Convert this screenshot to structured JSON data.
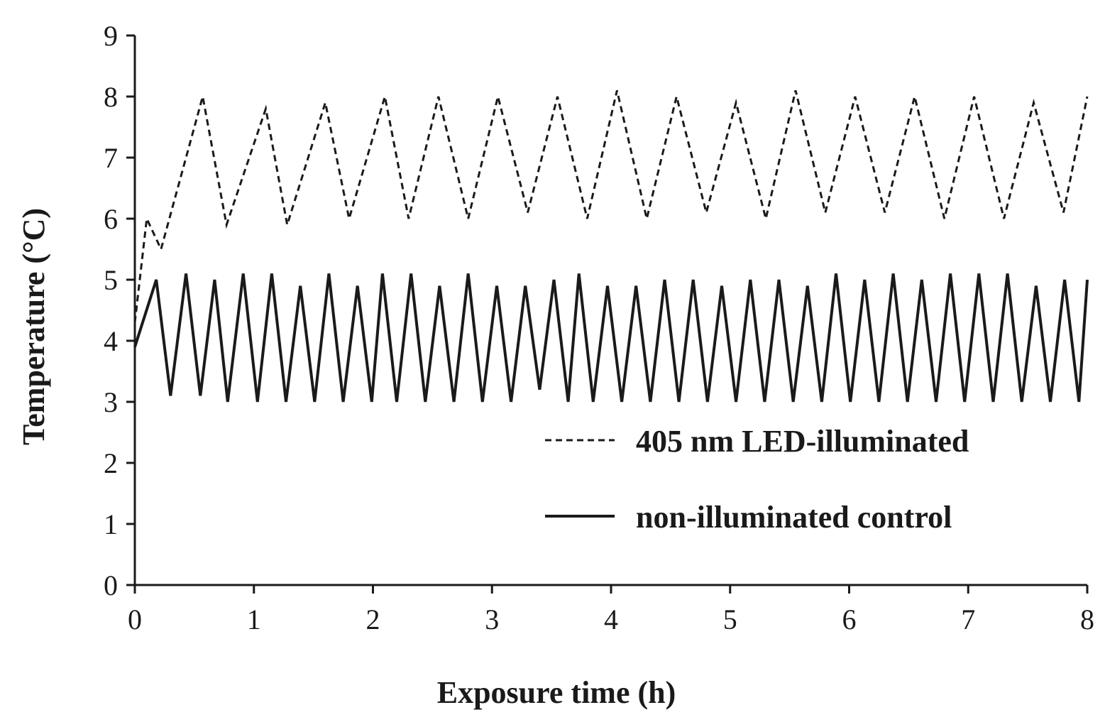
{
  "chart_data": {
    "type": "line",
    "title": "",
    "xlabel": "Exposure time (h)",
    "ylabel": "Temperature (°C)",
    "xlim": [
      0,
      8
    ],
    "ylim": [
      0,
      9
    ],
    "x_ticks": [
      "0",
      "1",
      "2",
      "3",
      "4",
      "5",
      "6",
      "7",
      "8"
    ],
    "y_ticks": [
      "0",
      "1",
      "2",
      "3",
      "4",
      "5",
      "6",
      "7",
      "8",
      "9"
    ],
    "grid": false,
    "legend_position": "bottom-right",
    "series": [
      {
        "name": "405 nm LED-illuminated",
        "style": "dashed",
        "color": "#1a1a1a",
        "x": [
          0,
          0.1,
          0.22,
          0.57,
          0.77,
          1.1,
          1.28,
          1.6,
          1.8,
          2.1,
          2.3,
          2.55,
          2.8,
          3.05,
          3.3,
          3.55,
          3.8,
          4.05,
          4.3,
          4.55,
          4.8,
          5.05,
          5.3,
          5.55,
          5.8,
          6.05,
          6.3,
          6.55,
          6.8,
          7.05,
          7.3,
          7.55,
          7.8,
          8.0
        ],
        "y": [
          4.3,
          6.0,
          5.5,
          8.0,
          5.9,
          7.8,
          5.9,
          7.9,
          6.0,
          8.0,
          6.0,
          8.0,
          6.0,
          8.0,
          6.1,
          8.0,
          6.0,
          8.1,
          6.0,
          8.0,
          6.1,
          7.9,
          6.0,
          8.1,
          6.1,
          8.0,
          6.1,
          8.0,
          6.0,
          8.0,
          6.0,
          7.9,
          6.1,
          8.0
        ]
      },
      {
        "name": "non-illuminated control",
        "style": "solid",
        "color": "#1a1a1a",
        "x": [
          0,
          0.18,
          0.3,
          0.43,
          0.55,
          0.67,
          0.78,
          0.91,
          1.03,
          1.15,
          1.27,
          1.39,
          1.51,
          1.63,
          1.75,
          1.87,
          1.99,
          2.08,
          2.2,
          2.32,
          2.44,
          2.56,
          2.68,
          2.8,
          2.92,
          3.04,
          3.16,
          3.28,
          3.4,
          3.52,
          3.64,
          3.73,
          3.85,
          3.97,
          4.09,
          4.21,
          4.33,
          4.45,
          4.57,
          4.69,
          4.81,
          4.93,
          5.05,
          5.17,
          5.29,
          5.41,
          5.53,
          5.65,
          5.77,
          5.89,
          6.01,
          6.13,
          6.25,
          6.37,
          6.49,
          6.61,
          6.73,
          6.85,
          6.97,
          7.09,
          7.21,
          7.33,
          7.45,
          7.57,
          7.69,
          7.81,
          7.93,
          8.0
        ],
        "y": [
          3.9,
          5.0,
          3.1,
          5.1,
          3.1,
          5.0,
          3.0,
          5.1,
          3.0,
          5.1,
          3.0,
          4.9,
          3.0,
          5.1,
          3.0,
          4.9,
          3.0,
          5.1,
          3.0,
          5.1,
          3.0,
          4.9,
          3.0,
          5.1,
          3.0,
          4.9,
          3.0,
          4.9,
          3.2,
          5.0,
          3.0,
          5.1,
          3.0,
          4.9,
          3.0,
          4.9,
          3.0,
          5.0,
          3.0,
          5.0,
          3.0,
          4.9,
          3.0,
          5.0,
          3.0,
          5.0,
          3.0,
          4.9,
          3.0,
          5.1,
          3.0,
          5.0,
          3.0,
          5.1,
          3.0,
          5.0,
          3.0,
          5.1,
          3.0,
          5.1,
          3.0,
          5.1,
          3.0,
          4.9,
          3.0,
          5.0,
          3.0,
          5.0
        ]
      }
    ]
  }
}
